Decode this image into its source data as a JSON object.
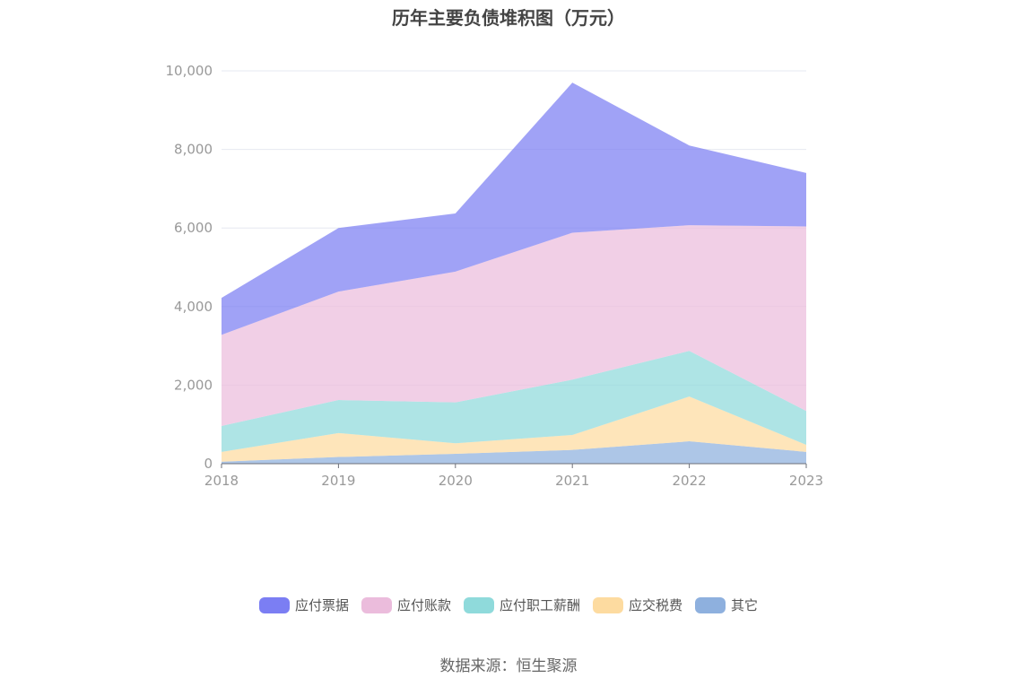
{
  "chart_data": {
    "type": "area",
    "stacked": true,
    "title": "历年主要负债堆积图（万元）",
    "x": [
      "2018",
      "2019",
      "2020",
      "2021",
      "2022",
      "2023"
    ],
    "ylim": [
      0,
      10000
    ],
    "yticks": [
      "0",
      "2,000",
      "4,000",
      "6,000",
      "8,000",
      "10,000"
    ],
    "grid": true,
    "legend_position": "bottom",
    "series": [
      {
        "name": "其它",
        "color": "#8eb0de",
        "values": [
          50,
          170,
          250,
          350,
          570,
          300
        ]
      },
      {
        "name": "应交税费",
        "color": "#fddba0",
        "values": [
          250,
          610,
          270,
          380,
          1140,
          180
        ]
      },
      {
        "name": "应付职工薪酬",
        "color": "#8fdadb",
        "values": [
          660,
          840,
          1040,
          1410,
          1160,
          860
        ]
      },
      {
        "name": "应付账款",
        "color": "#ebbcdc",
        "values": [
          2320,
          2760,
          3330,
          3740,
          3200,
          4700
        ]
      },
      {
        "name": "应付票据",
        "color": "#7b7ef3",
        "values": [
          940,
          1620,
          1480,
          3820,
          2030,
          1360
        ]
      }
    ]
  },
  "source_text": "数据来源：恒生聚源"
}
